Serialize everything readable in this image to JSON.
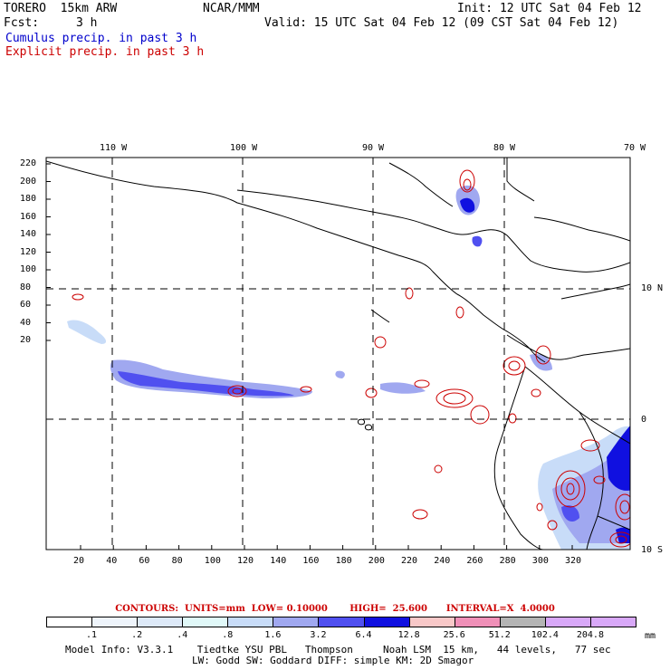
{
  "header": {
    "model_name": "TORERO  15km ARW",
    "org": "NCAR/MMM",
    "init": "Init: 12 UTC Sat 04 Feb 12",
    "fcst_label": "Fcst:",
    "fcst_value": "3 h",
    "valid": "Valid: 15 UTC Sat 04 Feb 12 (09 CST Sat 04 Feb 12)",
    "legend_cumulus": "Cumulus precip. in past 3 h",
    "legend_explicit": "Explicit precip. in past 3 h"
  },
  "colors": {
    "cumulus": "#0000cc",
    "explicit": "#cc0000"
  },
  "map": {
    "top_lon_labels": [
      "110 W",
      "100 W",
      "90 W",
      "80 W",
      "70 W"
    ],
    "right_lat_labels": [
      "10 N",
      "0",
      "10 S"
    ],
    "y_ticks": [
      "220",
      "200",
      "180",
      "160",
      "140",
      "120",
      "100",
      "80",
      "60",
      "40",
      "20"
    ],
    "x_ticks": [
      "20",
      "40",
      "60",
      "80",
      "100",
      "120",
      "140",
      "160",
      "180",
      "200",
      "220",
      "240",
      "260",
      "280",
      "300",
      "320"
    ]
  },
  "contour_info": {
    "text": "CONTOURS:  UNITS=mm  LOW= 0.10000       HIGH=  25.600      INTERVAL=X  4.0000"
  },
  "colorbar": {
    "labels": [
      ".1",
      ".2",
      ".4",
      ".8",
      "1.6",
      "3.2",
      "6.4",
      "12.8",
      "25.6",
      "51.2",
      "102.4",
      "204.8"
    ],
    "units": "mm",
    "colors": [
      "#ffffff",
      "#eef4fb",
      "#dde9f8",
      "#e0f8f8",
      "#c8dcf8",
      "#a0a8f0",
      "#5050f0",
      "#1010e0",
      "#f8c8c8",
      "#f090b8",
      "#b4b4b4",
      "#d8a8f8"
    ]
  },
  "footer": {
    "line1": "Model Info: V3.3.1    Tiedtke YSU PBL   Thompson     Noah LSM  15 km,   44 levels,   77 sec",
    "line2": "LW: Godd SW: Goddard DIFF: simple KM: 2D Smagor"
  }
}
